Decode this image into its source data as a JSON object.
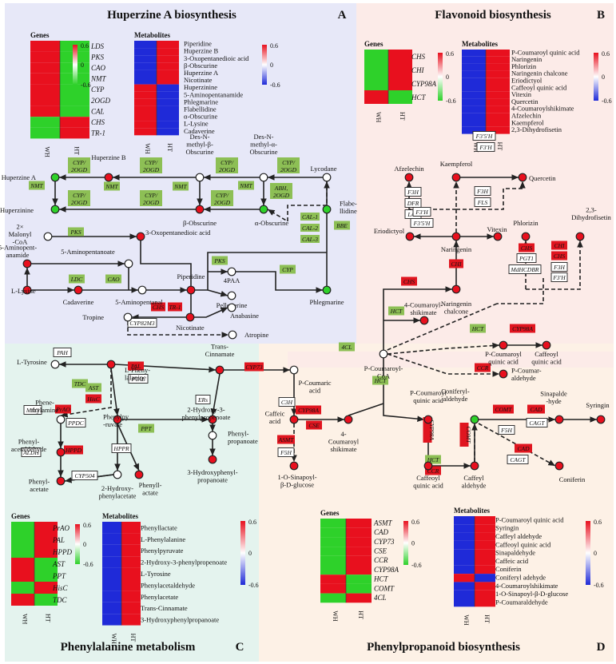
{
  "panels": {
    "A": {
      "title": "Huperzine A biosynthesis",
      "letter": "A",
      "bg": "#e7e8f8"
    },
    "B": {
      "title": "Flavonoid biosynthesis",
      "letter": "B",
      "bg": "#fcebe8"
    },
    "C": {
      "title": "Phenylalanine metabolism",
      "letter": "C",
      "bg": "#e4f3ee"
    },
    "D": {
      "title": "Phenylpropanoid biosynthesis",
      "letter": "D",
      "bg": "#fdf1e6"
    }
  },
  "colors": {
    "red": "#e8101e",
    "green": "#2ed12a",
    "blue": "#1f2ad8",
    "enzyme_green": "#8dbf55",
    "enzyme_red": "#e0151f"
  },
  "heatmap_labels": {
    "genes": "Genes",
    "metabolites": "Metabolites",
    "col1": "WH",
    "col2": "HT",
    "scale_max": "0.6",
    "scale_mid": "0",
    "scale_min": "-0.6"
  },
  "heatmaps": {
    "A_genes": {
      "rows": [
        "LDS",
        "PKS",
        "CAO",
        "NMT",
        "CYP",
        "2OGD",
        "CAL",
        "CHS",
        "TR-1"
      ],
      "wh": [
        "red",
        "red",
        "red",
        "red",
        "red",
        "red",
        "red",
        "green",
        "green"
      ],
      "ht": [
        "green",
        "green",
        "green",
        "green",
        "green",
        "green",
        "green",
        "red",
        "red"
      ]
    },
    "A_metabolites": {
      "rows": [
        "Piperidine",
        "Huperzine B",
        "3-Oxopentanedioic acid",
        "β-Obscurine",
        "Huperzine A",
        "Nicotinate",
        "Huperzinine",
        "5-Aminopentanamide",
        "Phlegmarine",
        "Flabellidine",
        "α-Obscurine",
        "L-Lysine",
        "Cadaverine"
      ],
      "wh": [
        "blue",
        "blue",
        "blue",
        "blue",
        "blue",
        "blue",
        "red",
        "red",
        "red",
        "red",
        "red",
        "red",
        "red"
      ],
      "ht": [
        "red",
        "red",
        "red",
        "red",
        "red",
        "red",
        "blue",
        "blue",
        "blue",
        "blue",
        "blue",
        "blue",
        "blue"
      ]
    },
    "B_genes": {
      "rows": [
        "CHS",
        "CHI",
        "CYP98A",
        "HCT"
      ],
      "wh": [
        "green",
        "green",
        "green",
        "red"
      ],
      "ht": [
        "red",
        "red",
        "red",
        "green"
      ]
    },
    "B_metabolites": {
      "rows": [
        "P-Coumaroyl quinic acid",
        "Naringenin",
        "Phlorizin",
        "Naringenin chalcone",
        "Eriodictyol",
        "Caffeoyl quinic acid",
        "Vitexin",
        "Quercetin",
        "4-Coumaroylshikimate",
        "Afzelechin",
        "Kaempferol",
        "2,3-Dihydrofisetin"
      ],
      "wh": [
        "blue",
        "blue",
        "blue",
        "blue",
        "blue",
        "blue",
        "blue",
        "blue",
        "blue",
        "blue",
        "blue",
        "blue"
      ],
      "ht": [
        "red",
        "red",
        "red",
        "red",
        "red",
        "red",
        "red",
        "red",
        "red",
        "red",
        "red",
        "red"
      ]
    },
    "C_genes": {
      "rows": [
        "PrAO",
        "PAL",
        "HPPD",
        "AST",
        "PPT",
        "HisC",
        "TDC"
      ],
      "wh": [
        "green",
        "green",
        "green",
        "red",
        "red",
        "green",
        "red"
      ],
      "ht": [
        "red",
        "red",
        "red",
        "green",
        "green",
        "red",
        "green"
      ]
    },
    "C_metabolites": {
      "rows": [
        "Phenyllactate",
        "L-Phenylalanine",
        "Phenylpyruvate",
        "2-Hydroxy-3-phenylpropenoate",
        "L-Tyrosine",
        "Phenylacetaldehyde",
        "Phenylacetate",
        "Trans-Cinnamate",
        "3-Hydroxyphenylpropanoate"
      ],
      "wh": [
        "blue",
        "blue",
        "blue",
        "blue",
        "blue",
        "blue",
        "blue",
        "blue",
        "blue"
      ],
      "ht": [
        "red",
        "red",
        "red",
        "red",
        "red",
        "red",
        "red",
        "red",
        "red"
      ]
    },
    "D_genes": {
      "rows": [
        "ASMT",
        "CAD",
        "CYP73",
        "CSE",
        "CCR",
        "CYP98A",
        "HCT",
        "COMT",
        "4CL"
      ],
      "wh": [
        "green",
        "green",
        "green",
        "green",
        "green",
        "green",
        "red",
        "red",
        "green"
      ],
      "ht": [
        "red",
        "red",
        "red",
        "red",
        "red",
        "red",
        "green",
        "green",
        "red"
      ]
    },
    "D_metabolites": {
      "rows": [
        "P-Coumaroyl quinic acid",
        "Syringin",
        "Caffeyl aldehyde",
        "Caffeoyl quinic acid",
        "Sinapaldehyde",
        "Caffeic acid",
        "Coniferin",
        "Coniferyl adehyde",
        "4-Coumaroylshikimate",
        "1-O-Sinapoyl-β-D-glucose",
        "P-Coumaraldehyde"
      ],
      "wh": [
        "blue",
        "blue",
        "blue",
        "blue",
        "blue",
        "blue",
        "blue",
        "red",
        "blue",
        "blue",
        "blue"
      ],
      "ht": [
        "red",
        "red",
        "red",
        "red",
        "red",
        "red",
        "red",
        "blue",
        "red",
        "red",
        "red"
      ]
    }
  },
  "nodes": [
    {
      "id": "hupA",
      "label": "Huperzine A",
      "fill": "green"
    },
    {
      "id": "hupzinine",
      "label": "Huperzinine",
      "fill": "green"
    },
    {
      "id": "hupB",
      "label": "Huperzine B",
      "fill": "red"
    },
    {
      "id": "desBeta",
      "label": "Des-N-methyl-β-Obscurine",
      "fill": "white"
    },
    {
      "id": "betaObs",
      "label": "β-Obscurine",
      "fill": "red"
    },
    {
      "id": "desAlpha",
      "label": "Des-N-methyl-α-Obscurine",
      "fill": "white"
    },
    {
      "id": "alphaObs",
      "label": "α-Obscurine",
      "fill": "green"
    },
    {
      "id": "lycodane",
      "label": "Lycodane",
      "fill": "white"
    },
    {
      "id": "flabe",
      "label": "Flabellidine",
      "fill": "green"
    },
    {
      "id": "malonyl",
      "label": "2× Malonyl-CoA",
      "fill": "white"
    },
    {
      "id": "oxopent",
      "label": "3-Oxopentanedioic acid",
      "fill": "red"
    },
    {
      "id": "aminopentanamide",
      "label": "5-Aminopentanamide",
      "fill": "red"
    },
    {
      "id": "aminopentanoate",
      "label": "5-Aminopentanoate",
      "fill": "white"
    },
    {
      "id": "lysine",
      "label": "L-Lysine",
      "fill": "red"
    },
    {
      "id": "cadaverine",
      "label": "Cadaverine",
      "fill": "red"
    },
    {
      "id": "aminopentanal",
      "label": "5-Aminopentanal",
      "fill": "white"
    },
    {
      "id": "piperidine",
      "label": "Piperidine",
      "fill": "red"
    },
    {
      "id": "4paa",
      "label": "4PAA",
      "fill": "white"
    },
    {
      "id": "pelletierine",
      "label": "Pelletierine",
      "fill": "white"
    },
    {
      "id": "phlegmarine",
      "label": "Phlegmarine",
      "fill": "green"
    },
    {
      "id": "tropine",
      "label": "Tropine",
      "fill": "white"
    },
    {
      "id": "nicotinate",
      "label": "Nicotinate",
      "fill": "red"
    },
    {
      "id": "anabasine",
      "label": "Anabasine",
      "fill": "white"
    },
    {
      "id": "atropine",
      "label": "Atropine",
      "fill": "white"
    },
    {
      "id": "afzelechin",
      "label": "Afzelechin",
      "fill": "red"
    },
    {
      "id": "kaempferol",
      "label": "Kaempferol",
      "fill": "red"
    },
    {
      "id": "quercetin",
      "label": "Quercetin",
      "fill": "red"
    },
    {
      "id": "eriodictyol",
      "label": "Eriodictyol",
      "fill": "red"
    },
    {
      "id": "naringenin",
      "label": "Naringenin",
      "fill": "red"
    },
    {
      "id": "vitexin",
      "label": "Vitexin",
      "fill": "red"
    },
    {
      "id": "phlorizin",
      "label": "Phlorizin",
      "fill": "red"
    },
    {
      "id": "dihydrofisetin",
      "label": "2,3-Dihydrofisetin",
      "fill": "red"
    },
    {
      "id": "chalcone",
      "label": "Naringenin chalcone",
      "fill": "red"
    },
    {
      "id": "coumshik_top",
      "label": "4-Coumaroyl-shikimate",
      "fill": "red"
    },
    {
      "id": "pcoumcoa",
      "label": "P-Coumaroyl-CoA",
      "fill": "white"
    },
    {
      "id": "pcqa_top",
      "label": "P-Coumaroyl quinic acid",
      "fill": "red"
    },
    {
      "id": "cqa_top",
      "label": "Caffeoyl quinic acid",
      "fill": "red"
    },
    {
      "id": "pcoumald",
      "label": "P-Coumar-aldehyde",
      "fill": "red"
    },
    {
      "id": "tyrosine",
      "label": "L-Tyrosine",
      "fill": "white"
    },
    {
      "id": "phe",
      "label": "L-Phenylalanine",
      "fill": "red"
    },
    {
      "id": "transcin",
      "label": "Trans-Cinnamate",
      "fill": "red"
    },
    {
      "id": "pcoumacid",
      "label": "P-Coumaric acid",
      "fill": "white"
    },
    {
      "id": "phenethylamine",
      "label": "Phenethylamine",
      "fill": "white"
    },
    {
      "id": "phenylpyruvate",
      "label": "Phenylpyruvate",
      "fill": "red"
    },
    {
      "id": "hydroxyphenylpropenoate",
      "label": "2-Hydroxy-3-phenylpropenoate",
      "fill": "red"
    },
    {
      "id": "phenylpropanoate",
      "label": "Phenylpropanoate",
      "fill": "white"
    },
    {
      "id": "phenylacetaldehyde",
      "label": "Phenylacetaldehyde",
      "fill": "red"
    },
    {
      "id": "hydroxyphenylpropanoate",
      "label": "3-Hydroxyphenylpropanoate",
      "fill": "red"
    },
    {
      "id": "phenylacetate",
      "label": "Phenylacetate",
      "fill": "red"
    },
    {
      "id": "hydroxyphenylacetate",
      "label": "2-Hydroxyphenylacetate",
      "fill": "white"
    },
    {
      "id": "phenyllactate",
      "label": "Phenyllactate",
      "fill": "red"
    },
    {
      "id": "caffeic",
      "label": "Caffeic acid",
      "fill": "red"
    },
    {
      "id": "coumshik_bot",
      "label": "4-Coumaroyl shikimate",
      "fill": "red"
    },
    {
      "id": "pcqa_bot",
      "label": "P-Coumaroyl quinic acid",
      "fill": "red"
    },
    {
      "id": "coniferylald",
      "label": "Coniferyl aldehyde",
      "fill": "green"
    },
    {
      "id": "sinapald",
      "label": "Sinapalde-hyde",
      "fill": "red"
    },
    {
      "id": "syringin",
      "label": "Syringin",
      "fill": "red"
    },
    {
      "id": "sinapoylglucose",
      "label": "1-O-Sinapoyl-β-D-glucose",
      "fill": "red"
    },
    {
      "id": "cqa_bot",
      "label": "Caffeoyl quinic acid",
      "fill": "red"
    },
    {
      "id": "caffeylald",
      "label": "Caffeyl aldehyde",
      "fill": "red"
    },
    {
      "id": "coniferin",
      "label": "Coniferin",
      "fill": "red"
    }
  ],
  "enzymes": [
    {
      "id": "e_cyp1",
      "label": "CYP/ 2OGD",
      "style": "green"
    },
    {
      "id": "e_cyp2",
      "label": "CYP/ 2OGD",
      "style": "green"
    },
    {
      "id": "e_cyp3",
      "label": "CYP/ 2OGD",
      "style": "green"
    },
    {
      "id": "e_cyp4",
      "label": "CYP/ 2OGD",
      "style": "green"
    },
    {
      "id": "e_cyp5",
      "label": "CYP/ 2OGD",
      "style": "green"
    },
    {
      "id": "e_cyp6",
      "label": "CYP/ 2OGD",
      "style": "green"
    },
    {
      "id": "e_nmt1",
      "label": "NMT",
      "style": "green"
    },
    {
      "id": "e_nmt2",
      "label": "NMT",
      "style": "green"
    },
    {
      "id": "e_nmt3",
      "label": "NMT",
      "style": "green"
    },
    {
      "id": "e_nmt4",
      "label": "NMT",
      "style": "green"
    },
    {
      "id": "e_abh",
      "label": "ABH, 2OGD",
      "style": "green"
    },
    {
      "id": "e_cal1",
      "label": "CAL-1",
      "style": "green"
    },
    {
      "id": "e_cal2",
      "label": "CAL-2",
      "style": "green"
    },
    {
      "id": "e_cal3",
      "label": "CAL-3",
      "style": "green"
    },
    {
      "id": "e_bbe",
      "label": "BBE",
      "style": "green"
    },
    {
      "id": "e_pks1",
      "label": "PKS",
      "style": "green"
    },
    {
      "id": "e_pks2",
      "label": "PKS",
      "style": "green"
    },
    {
      "id": "e_ldc",
      "label": "LDC",
      "style": "green"
    },
    {
      "id": "e_cao",
      "label": "CAO",
      "style": "green"
    },
    {
      "id": "e_cyp",
      "label": "CYP",
      "style": "green"
    },
    {
      "id": "e_chs_a",
      "label": "CHS",
      "style": "red"
    },
    {
      "id": "e_tr1",
      "label": "TR-1",
      "style": "red"
    },
    {
      "id": "e_cyp82",
      "label": "CYP82M3",
      "style": "white"
    },
    {
      "id": "e_f3h_a",
      "label": "F3H",
      "style": "white"
    },
    {
      "id": "e_dfr",
      "label": "DFR",
      "style": "white"
    },
    {
      "id": "e_lar",
      "label": "LAR",
      "style": "white"
    },
    {
      "id": "e_f35h_a",
      "label": "F3'5'H",
      "style": "white"
    },
    {
      "id": "e_f3ph_a",
      "label": "F3'H",
      "style": "white"
    },
    {
      "id": "e_f3h_b",
      "label": "F3H",
      "style": "white"
    },
    {
      "id": "e_fls",
      "label": "FLS",
      "style": "white"
    },
    {
      "id": "e_f3ph_b",
      "label": "F3'H",
      "style": "white"
    },
    {
      "id": "e_f35h_b",
      "label": "F3'5'H",
      "style": "white"
    },
    {
      "id": "e_chi",
      "label": "CHI",
      "style": "red"
    },
    {
      "id": "e_chs_b",
      "label": "CHS",
      "style": "red"
    },
    {
      "id": "e_chs_c",
      "label": "CHS",
      "style": "red"
    },
    {
      "id": "e_pgt1",
      "label": "PGT1",
      "style": "white"
    },
    {
      "id": "e_mdh",
      "label": "MdHCDBR",
      "style": "white"
    },
    {
      "id": "e_chi2",
      "label": "CHI",
      "style": "red"
    },
    {
      "id": "e_chs_d",
      "label": "CHS",
      "style": "red"
    },
    {
      "id": "e_f3h_c",
      "label": "F3H",
      "style": "white"
    },
    {
      "id": "e_f3ph_c",
      "label": "F3'H",
      "style": "white"
    },
    {
      "id": "e_hct_a",
      "label": "HCT",
      "style": "green"
    },
    {
      "id": "e_4cl",
      "label": "4CL",
      "style": "green"
    },
    {
      "id": "e_hct_b",
      "label": "HCT",
      "style": "green"
    },
    {
      "id": "e_cyp98_a",
      "label": "CYP98A",
      "style": "red"
    },
    {
      "id": "e_ccr_a",
      "label": "CCR",
      "style": "red"
    },
    {
      "id": "e_hct_c",
      "label": "HCT",
      "style": "green"
    },
    {
      "id": "e_pal",
      "label": "PAL",
      "style": "red"
    },
    {
      "id": "e_ptal",
      "label": "PTAL",
      "style": "white"
    },
    {
      "id": "e_cyp73",
      "label": "CYP73",
      "style": "red"
    },
    {
      "id": "e_pah",
      "label": "PAH",
      "style": "white"
    },
    {
      "id": "e_tdc",
      "label": "TDC",
      "style": "green"
    },
    {
      "id": "e_ast",
      "label": "AST",
      "style": "green"
    },
    {
      "id": "e_hisc",
      "label": "HisC",
      "style": "red"
    },
    {
      "id": "e_mao",
      "label": "MAO",
      "style": "white"
    },
    {
      "id": "e_prao",
      "label": "PrAO",
      "style": "red"
    },
    {
      "id": "e_ppdc",
      "label": "PPDC",
      "style": "white"
    },
    {
      "id": "e_ppt",
      "label": "PPT",
      "style": "green"
    },
    {
      "id": "e_ers",
      "label": "ERs",
      "style": "white"
    },
    {
      "id": "e_aldh",
      "label": "ALDH",
      "style": "white"
    },
    {
      "id": "e_hppd",
      "label": "HPPD",
      "style": "red"
    },
    {
      "id": "e_cyp504",
      "label": "CYP504",
      "style": "white"
    },
    {
      "id": "e_hppr",
      "label": "HPPR",
      "style": "white"
    },
    {
      "id": "e_c3h",
      "label": "C3H",
      "style": "white"
    },
    {
      "id": "e_cyp98_b",
      "label": "CYP98A",
      "style": "red"
    },
    {
      "id": "e_cse",
      "label": "CSE",
      "style": "red"
    },
    {
      "id": "e_asmt",
      "label": "ASMT",
      "style": "red"
    },
    {
      "id": "e_f5h_a",
      "label": "F5H",
      "style": "white"
    },
    {
      "id": "e_cyp98_c",
      "label": "CYP98A",
      "style": "red"
    },
    {
      "id": "e_hct_d",
      "label": "HCT",
      "style": "green"
    },
    {
      "id": "e_ccr_b",
      "label": "CCR",
      "style": "red"
    },
    {
      "id": "e_comt_a",
      "label": "COMT",
      "style": "red"
    },
    {
      "id": "e_comt_b",
      "label": "COMT",
      "style": "red"
    },
    {
      "id": "e_f5h_b",
      "label": "F5H",
      "style": "white"
    },
    {
      "id": "e_cad_a",
      "label": "CAD",
      "style": "red"
    },
    {
      "id": "e_cagt_a",
      "label": "CAGT",
      "style": "white"
    },
    {
      "id": "e_cad_b",
      "label": "CAD",
      "style": "red"
    },
    {
      "id": "e_cagt_b",
      "label": "CAGT",
      "style": "white"
    }
  ]
}
